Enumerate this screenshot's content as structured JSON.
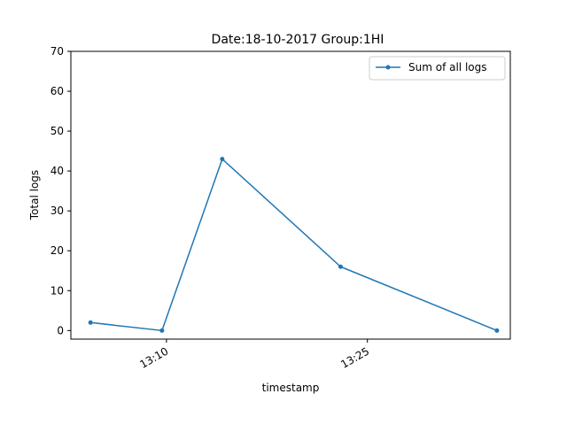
{
  "chart_data": {
    "type": "line",
    "title": "Date:18-10-2017  Group:1HI",
    "xlabel": "timestamp",
    "ylabel": "Total logs",
    "ylim": [
      -2.15,
      70
    ],
    "xlim": [
      "13:02:52",
      "13:35:40"
    ],
    "y_ticks": [
      0,
      10,
      20,
      30,
      40,
      50,
      60,
      70
    ],
    "x_ticks": [
      {
        "label": "13:10",
        "t": "13:10:00"
      },
      {
        "label": "13:25",
        "t": "13:25:00"
      }
    ],
    "grid": false,
    "legend_position": "top-right",
    "series": [
      {
        "name": "Sum of all logs",
        "color": "#1f77b4",
        "marker": "point",
        "x": [
          "13:04:20",
          "13:09:40",
          "13:14:10",
          "13:23:00",
          "13:34:40"
        ],
        "values": [
          2,
          0,
          43,
          16,
          0
        ]
      }
    ]
  }
}
